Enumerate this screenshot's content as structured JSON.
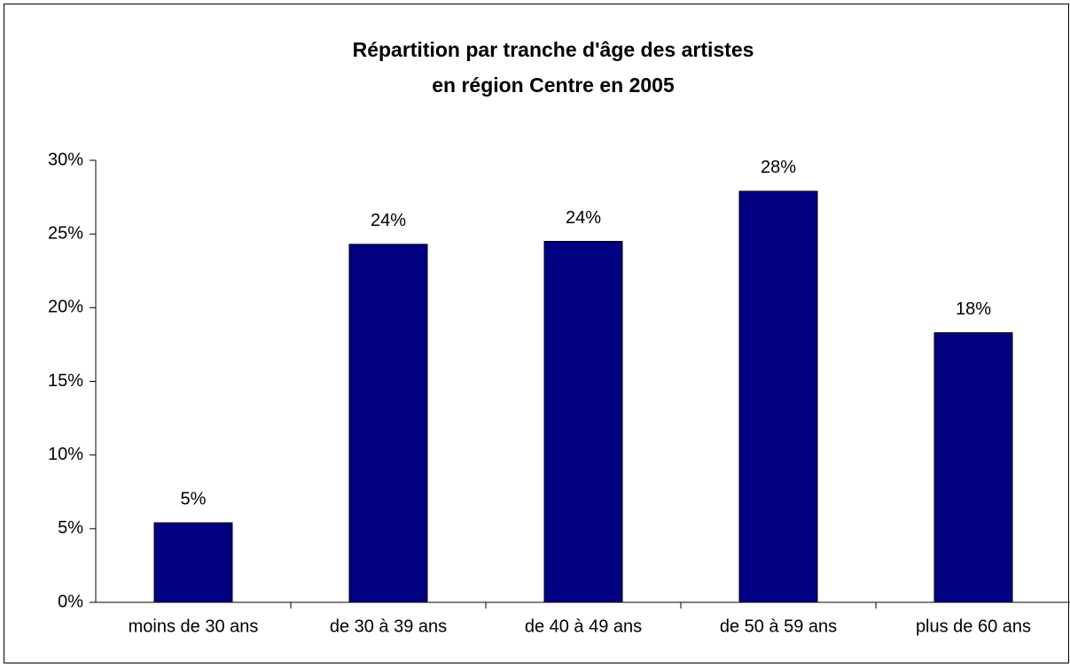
{
  "chart_data": {
    "type": "bar",
    "title": [
      "Répartition par tranche d'âge des artistes",
      "en région Centre en 2005"
    ],
    "categories": [
      "moins de 30 ans",
      "de 30 à 39 ans",
      "de 40 à 49 ans",
      "de 50 à 59 ans",
      "plus de 60 ans"
    ],
    "values": [
      5.4,
      24.3,
      24.5,
      27.9,
      18.3
    ],
    "value_labels": [
      "5%",
      "24%",
      "24%",
      "28%",
      "18%"
    ],
    "color": "#000080",
    "ylim": [
      0,
      30
    ],
    "yticks": [
      {
        "value": 0,
        "label": "0%"
      },
      {
        "value": 5,
        "label": "5%"
      },
      {
        "value": 10,
        "label": "10%"
      },
      {
        "value": 15,
        "label": "15%"
      },
      {
        "value": 20,
        "label": "20%"
      },
      {
        "value": 25,
        "label": "25%"
      },
      {
        "value": 30,
        "label": "30%"
      }
    ],
    "grid": false
  }
}
